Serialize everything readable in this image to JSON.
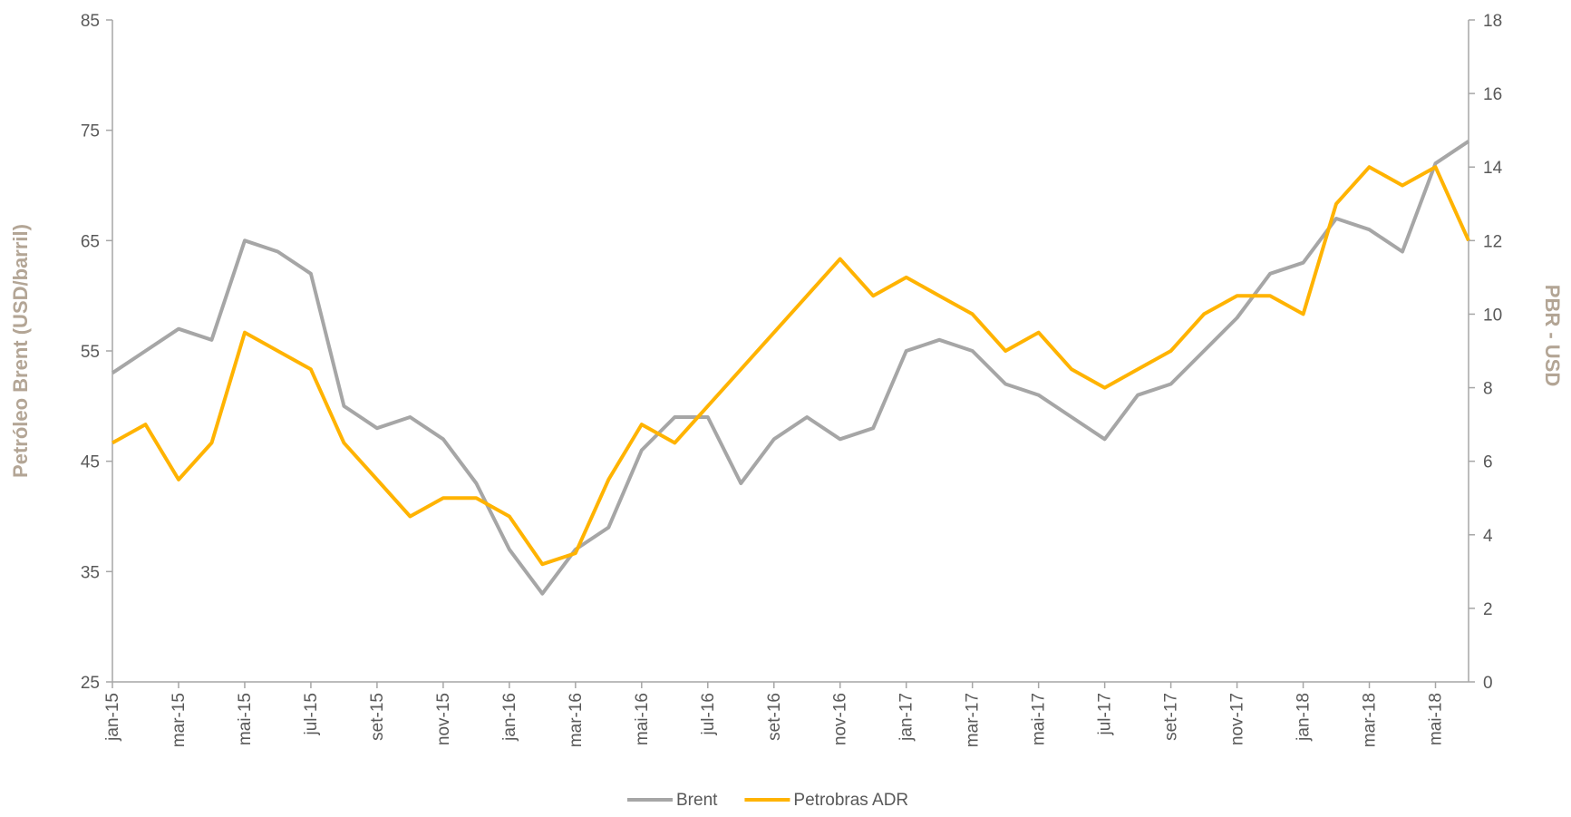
{
  "chart_data": {
    "type": "line",
    "categories": [
      "jan-15",
      null,
      "mar-15",
      null,
      "mai-15",
      null,
      "jul-15",
      null,
      "set-15",
      null,
      "nov-15",
      null,
      "jan-16",
      null,
      "mar-16",
      null,
      "mai-16",
      null,
      "jul-16",
      null,
      "set-16",
      null,
      "nov-16",
      null,
      "jan-17",
      null,
      "mar-17",
      null,
      "mai-17",
      null,
      "jul-17",
      null,
      "set-17",
      null,
      "nov-17",
      null,
      "jan-18",
      null,
      "mar-18",
      null,
      "mai-18",
      null
    ],
    "y_label": "Petróleo Brent (USD/barril)",
    "y2_label": "PBR - USD",
    "ylim": [
      25,
      85
    ],
    "yticks": [
      25,
      35,
      45,
      55,
      65,
      75,
      85
    ],
    "y2lim": [
      0,
      18
    ],
    "y2ticks": [
      0,
      2,
      4,
      6,
      8,
      10,
      12,
      14,
      16,
      18
    ],
    "legend": "bottom",
    "series": [
      {
        "name": "Brent",
        "color": "#a6a6a6",
        "values": [
          53,
          55,
          57,
          56,
          65,
          64,
          62,
          50,
          48,
          49,
          47,
          43,
          37,
          33,
          37,
          39,
          46,
          49,
          49,
          43,
          47,
          49,
          47,
          48,
          55,
          56,
          55,
          52,
          51,
          49,
          47,
          51,
          52,
          55,
          58,
          62,
          63,
          67,
          66,
          64,
          72,
          74
        ]
      },
      {
        "name": "Petrobras ADR",
        "color": "#ffb300",
        "axis": "y2",
        "values": [
          6.5,
          7,
          5.5,
          6.5,
          9.5,
          9,
          8.5,
          6.5,
          5.5,
          4.5,
          5,
          5,
          4.5,
          3.2,
          3.5,
          5.5,
          7,
          6.5,
          7.5,
          8.5,
          9.5,
          10.5,
          11.5,
          10.5,
          11,
          10.5,
          10,
          9,
          9.5,
          8.5,
          8,
          8.5,
          9,
          10,
          10.5,
          10.5,
          10,
          13,
          14,
          13.5,
          14,
          12
        ]
      }
    ]
  }
}
